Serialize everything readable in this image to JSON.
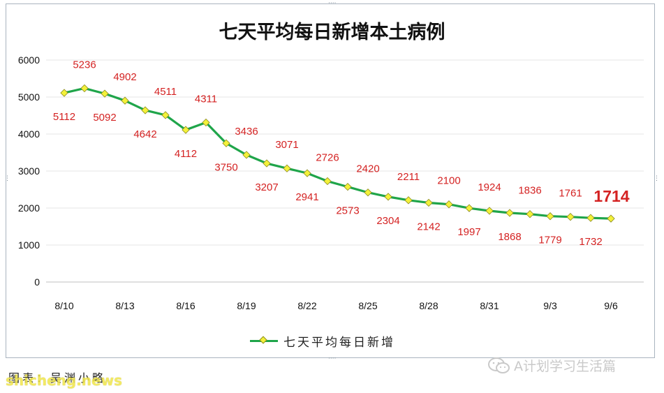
{
  "chart_data": {
    "type": "line",
    "title": "七天平均每日新增本土病例",
    "xlabel": "",
    "ylabel": "",
    "ylim": [
      0,
      6000
    ],
    "yticks": [
      "0",
      "1000",
      "2000",
      "3000",
      "4000",
      "5000",
      "6000"
    ],
    "xtick_labels": [
      "8/10",
      "8/13",
      "8/16",
      "8/19",
      "8/22",
      "8/25",
      "8/28",
      "8/31",
      "9/3",
      "9/6"
    ],
    "grid": true,
    "legend": "bottom",
    "series": [
      {
        "name": "七天平均每日新增",
        "color": "#1fa54a",
        "marker_color": "#f3f13a",
        "values": [
          5112,
          5236,
          5092,
          4902,
          4642,
          4511,
          4112,
          4311,
          3750,
          3436,
          3207,
          3071,
          2941,
          2726,
          2573,
          2420,
          2304,
          2211,
          2142,
          2100,
          1997,
          1924,
          1868,
          1836,
          1779,
          1761,
          1732,
          1714
        ],
        "labels": [
          "5112",
          "5236",
          "5092",
          "4902",
          "4642",
          "4511",
          "4112",
          "4311",
          "3750",
          "3436",
          "3207",
          "3071",
          "2941",
          "2726",
          "2573",
          "2420",
          "2304",
          "2211",
          "2142",
          "2100",
          "1997",
          "1924",
          "1868",
          "1836",
          "1779",
          "1761",
          "1732",
          "1714"
        ]
      }
    ],
    "label_color": "#d42222"
  },
  "footer": {
    "caption": "图表：吴渊小略",
    "site_watermark": "shicheng.news",
    "account_watermark": "A计划学习生活篇"
  }
}
